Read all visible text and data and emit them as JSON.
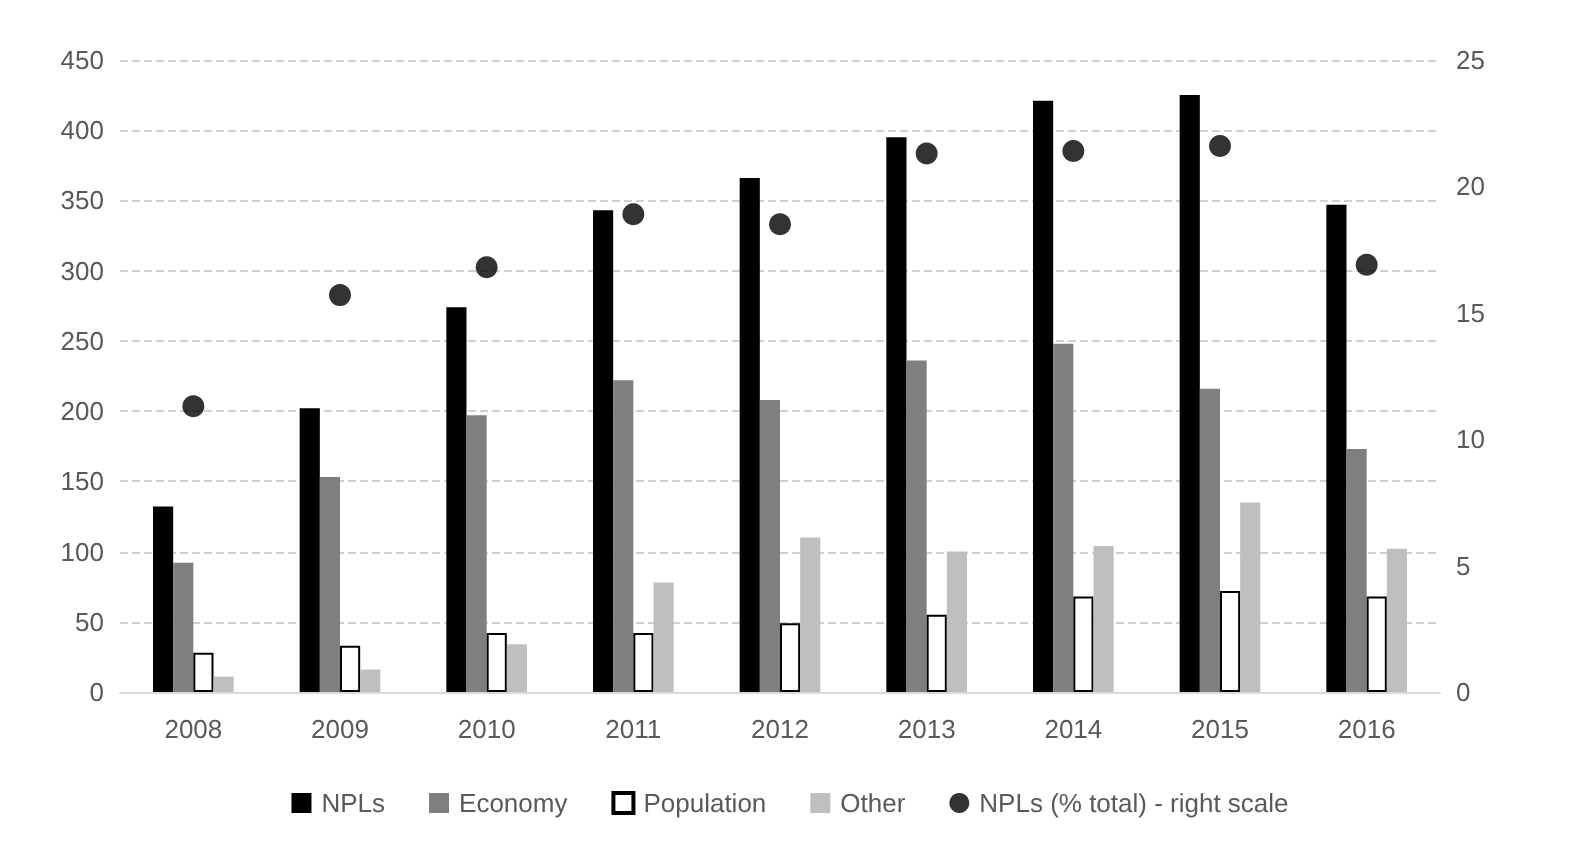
{
  "chart_data": {
    "type": "bar",
    "categories": [
      "2008",
      "2009",
      "2010",
      "2011",
      "2012",
      "2013",
      "2014",
      "2015",
      "2016"
    ],
    "series": [
      {
        "name": "NPLs",
        "color": "#000000",
        "values": [
          132,
          202,
          274,
          343,
          366,
          395,
          421,
          425,
          347
        ]
      },
      {
        "name": "Economy",
        "color": "#7f7f7f",
        "values": [
          92,
          153,
          197,
          222,
          208,
          236,
          248,
          216,
          173
        ]
      },
      {
        "name": "Population",
        "color": "#ffffff",
        "values": [
          28,
          33,
          42,
          42,
          49,
          55,
          68,
          72,
          68
        ]
      },
      {
        "name": "Other",
        "color": "#bfbfbf",
        "values": [
          11,
          16,
          34,
          78,
          110,
          100,
          104,
          135,
          102
        ]
      },
      {
        "name": "NPLs (% total) - right scale",
        "type": "scatter",
        "axis": "y2",
        "color": "#000000",
        "marker": "circle",
        "values": [
          11.3,
          15.7,
          16.8,
          18.9,
          18.5,
          21.3,
          21.4,
          21.6,
          16.9
        ]
      }
    ],
    "ylim": [
      0,
      450
    ],
    "yticks": [
      0,
      50,
      100,
      150,
      200,
      250,
      300,
      350,
      400,
      450
    ],
    "y2lim": [
      0,
      25
    ],
    "y2ticks": [
      0,
      5,
      10,
      15,
      20,
      25
    ],
    "grid": "y",
    "legend": "bottom"
  }
}
